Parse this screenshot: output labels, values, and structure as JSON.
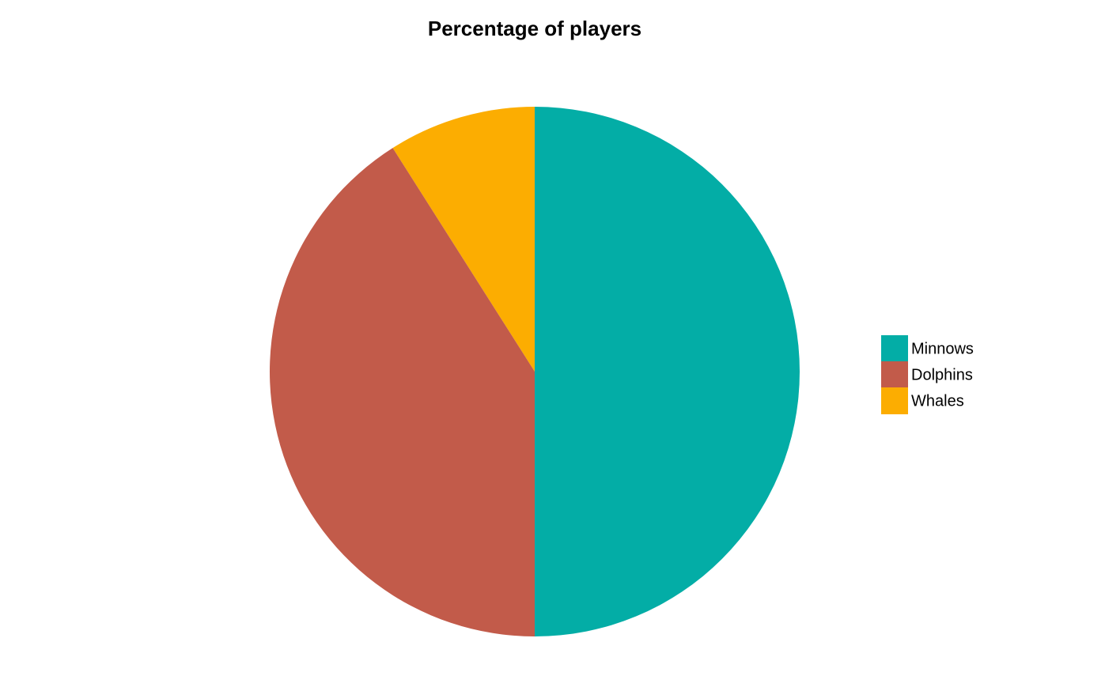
{
  "chart_data": {
    "type": "pie",
    "title": "Percentage of players",
    "categories": [
      "Minnows",
      "Dolphins",
      "Whales"
    ],
    "values": [
      50,
      41,
      9
    ],
    "colors": [
      "#03ada6",
      "#c25b4a",
      "#fcad01"
    ]
  }
}
